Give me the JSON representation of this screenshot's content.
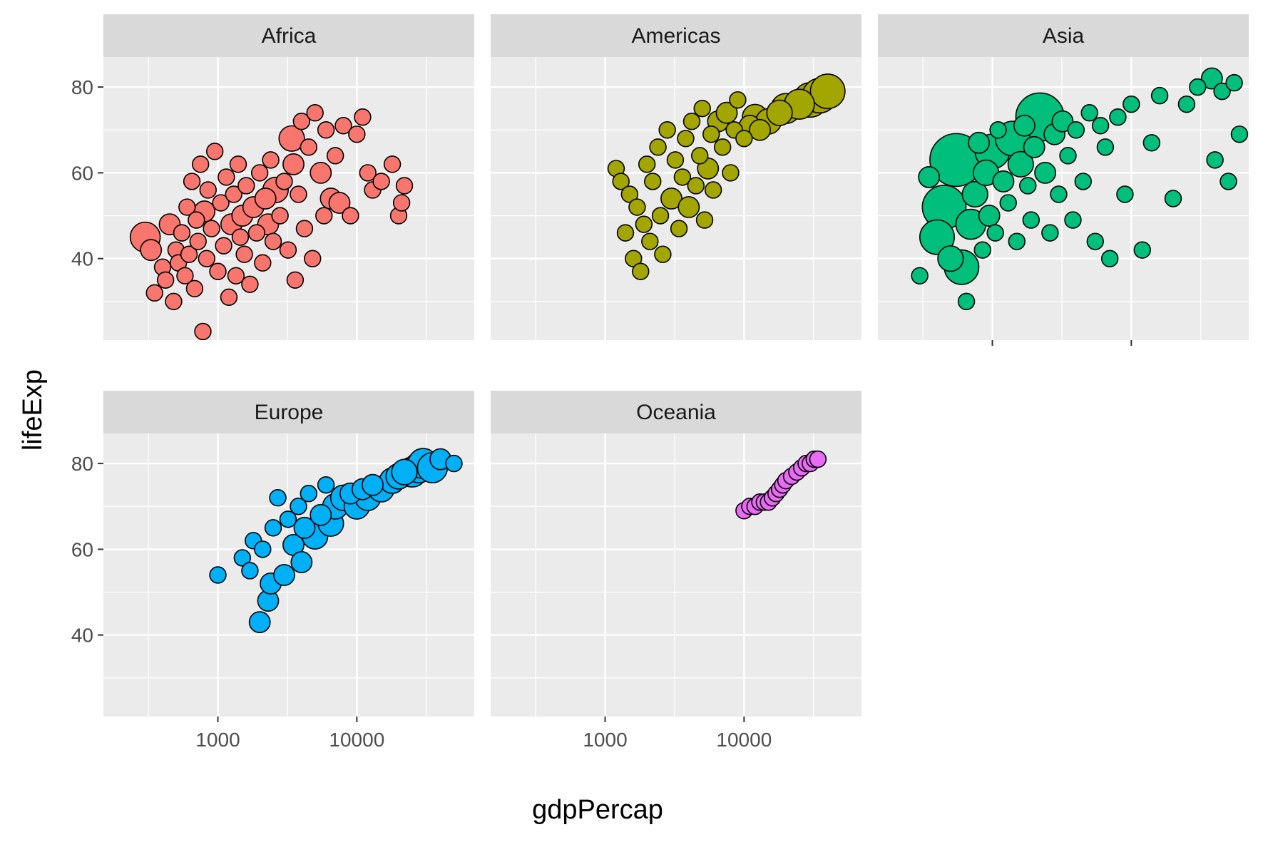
{
  "chart_data": {
    "type": "scatter",
    "xlabel": "gdpPercap",
    "ylabel": "lifeExp",
    "x_scale": "log10",
    "xlim": [
      150,
      70000
    ],
    "ylim": [
      21,
      87
    ],
    "x_ticks": [
      1000,
      10000
    ],
    "x_tick_labels": [
      "1000",
      "10000"
    ],
    "y_ticks": [
      40,
      60,
      80
    ],
    "y_tick_labels": [
      "40",
      "60",
      "80"
    ],
    "grid": true,
    "size_encoding": "population",
    "panels": [
      {
        "name": "Africa",
        "color": "#F8766D",
        "points": [
          [
            300,
            45,
            5
          ],
          [
            330,
            42,
            3
          ],
          [
            350,
            32,
            2
          ],
          [
            400,
            38,
            2
          ],
          [
            420,
            35,
            2
          ],
          [
            450,
            48,
            3
          ],
          [
            480,
            30,
            2
          ],
          [
            500,
            42,
            2
          ],
          [
            520,
            39,
            2
          ],
          [
            550,
            46,
            2
          ],
          [
            580,
            36,
            2
          ],
          [
            600,
            52,
            2
          ],
          [
            620,
            41,
            2
          ],
          [
            650,
            58,
            2
          ],
          [
            680,
            33,
            2
          ],
          [
            700,
            49,
            2
          ],
          [
            720,
            44,
            2
          ],
          [
            750,
            62,
            2
          ],
          [
            780,
            23,
            2
          ],
          [
            800,
            51,
            3
          ],
          [
            830,
            40,
            2
          ],
          [
            850,
            56,
            2
          ],
          [
            900,
            47,
            2
          ],
          [
            950,
            65,
            2
          ],
          [
            1000,
            37,
            2
          ],
          [
            1050,
            53,
            2
          ],
          [
            1100,
            43,
            2
          ],
          [
            1150,
            59,
            2
          ],
          [
            1200,
            31,
            2
          ],
          [
            1250,
            48,
            3
          ],
          [
            1300,
            55,
            2
          ],
          [
            1350,
            36,
            2
          ],
          [
            1400,
            62,
            2
          ],
          [
            1450,
            45,
            2
          ],
          [
            1500,
            50,
            3
          ],
          [
            1550,
            41,
            2
          ],
          [
            1600,
            57,
            2
          ],
          [
            1700,
            34,
            2
          ],
          [
            1800,
            52,
            3
          ],
          [
            1900,
            46,
            2
          ],
          [
            2000,
            60,
            2
          ],
          [
            2100,
            39,
            2
          ],
          [
            2200,
            54,
            3
          ],
          [
            2300,
            48,
            3
          ],
          [
            2400,
            63,
            2
          ],
          [
            2500,
            44,
            2
          ],
          [
            2600,
            56,
            4
          ],
          [
            2800,
            50,
            2
          ],
          [
            3000,
            58,
            2
          ],
          [
            3200,
            42,
            2
          ],
          [
            3400,
            68,
            4
          ],
          [
            3500,
            62,
            3
          ],
          [
            3600,
            35,
            2
          ],
          [
            3800,
            55,
            2
          ],
          [
            4000,
            72,
            2
          ],
          [
            4200,
            47,
            2
          ],
          [
            4500,
            66,
            2
          ],
          [
            4800,
            40,
            2
          ],
          [
            5000,
            74,
            2
          ],
          [
            5500,
            60,
            3
          ],
          [
            5800,
            50,
            2
          ],
          [
            6000,
            70,
            2
          ],
          [
            6500,
            54,
            3
          ],
          [
            7000,
            64,
            2
          ],
          [
            7500,
            53,
            3
          ],
          [
            8000,
            71,
            2
          ],
          [
            9000,
            50,
            2
          ],
          [
            10000,
            69,
            2
          ],
          [
            11000,
            73,
            2
          ],
          [
            12000,
            60,
            2
          ],
          [
            13000,
            56,
            2
          ],
          [
            15000,
            58,
            2
          ],
          [
            18000,
            62,
            2
          ],
          [
            20000,
            50,
            2
          ],
          [
            21000,
            53,
            2
          ],
          [
            22000,
            57,
            2
          ]
        ]
      },
      {
        "name": "Americas",
        "color": "#A3A500",
        "points": [
          [
            1200,
            61,
            2
          ],
          [
            1300,
            58,
            2
          ],
          [
            1400,
            46,
            2
          ],
          [
            1500,
            55,
            2
          ],
          [
            1600,
            40,
            2
          ],
          [
            1700,
            52,
            2
          ],
          [
            1800,
            37,
            2
          ],
          [
            1900,
            48,
            2
          ],
          [
            2000,
            62,
            2
          ],
          [
            2100,
            44,
            2
          ],
          [
            2200,
            58,
            2
          ],
          [
            2400,
            66,
            2
          ],
          [
            2500,
            50,
            2
          ],
          [
            2600,
            41,
            2
          ],
          [
            2800,
            70,
            2
          ],
          [
            3000,
            54,
            3
          ],
          [
            3200,
            63,
            2
          ],
          [
            3400,
            47,
            2
          ],
          [
            3600,
            59,
            2
          ],
          [
            3800,
            68,
            2
          ],
          [
            4000,
            52,
            3
          ],
          [
            4200,
            72,
            2
          ],
          [
            4500,
            57,
            2
          ],
          [
            4800,
            64,
            2
          ],
          [
            5000,
            75,
            2
          ],
          [
            5200,
            49,
            2
          ],
          [
            5500,
            61,
            3
          ],
          [
            5800,
            69,
            2
          ],
          [
            6000,
            56,
            2
          ],
          [
            6500,
            72,
            3
          ],
          [
            7000,
            66,
            2
          ],
          [
            7500,
            74,
            3
          ],
          [
            8000,
            60,
            2
          ],
          [
            8500,
            70,
            2
          ],
          [
            9000,
            77,
            2
          ],
          [
            10000,
            68,
            2
          ],
          [
            11000,
            71,
            3
          ],
          [
            12000,
            73,
            4
          ],
          [
            13000,
            70,
            3
          ],
          [
            15000,
            72,
            4
          ],
          [
            18000,
            74,
            4
          ],
          [
            20000,
            75,
            5
          ],
          [
            25000,
            76,
            5
          ],
          [
            30000,
            77,
            6
          ],
          [
            35000,
            78,
            6
          ],
          [
            40000,
            79,
            6
          ]
        ]
      },
      {
        "name": "Asia",
        "color": "#00BF7D",
        "points": [
          [
            300,
            36,
            2
          ],
          [
            350,
            59,
            3
          ],
          [
            400,
            45,
            6
          ],
          [
            450,
            52,
            8
          ],
          [
            500,
            40,
            4
          ],
          [
            550,
            63,
            10
          ],
          [
            600,
            38,
            6
          ],
          [
            650,
            30,
            2
          ],
          [
            700,
            48,
            5
          ],
          [
            750,
            55,
            4
          ],
          [
            800,
            67,
            3
          ],
          [
            850,
            42,
            2
          ],
          [
            900,
            60,
            4
          ],
          [
            950,
            50,
            3
          ],
          [
            1000,
            65,
            6
          ],
          [
            1050,
            46,
            2
          ],
          [
            1100,
            70,
            2
          ],
          [
            1200,
            58,
            3
          ],
          [
            1300,
            53,
            2
          ],
          [
            1400,
            68,
            6
          ],
          [
            1500,
            44,
            2
          ],
          [
            1600,
            62,
            4
          ],
          [
            1700,
            71,
            3
          ],
          [
            1800,
            57,
            2
          ],
          [
            1900,
            49,
            2
          ],
          [
            2000,
            66,
            3
          ],
          [
            2200,
            73,
            9
          ],
          [
            2400,
            60,
            3
          ],
          [
            2600,
            46,
            2
          ],
          [
            2800,
            69,
            3
          ],
          [
            3000,
            55,
            2
          ],
          [
            3200,
            72,
            3
          ],
          [
            3500,
            64,
            2
          ],
          [
            3800,
            49,
            2
          ],
          [
            4000,
            70,
            2
          ],
          [
            4500,
            58,
            2
          ],
          [
            5000,
            74,
            2
          ],
          [
            5500,
            44,
            2
          ],
          [
            6000,
            71,
            2
          ],
          [
            6500,
            66,
            2
          ],
          [
            7000,
            40,
            2
          ],
          [
            8000,
            73,
            2
          ],
          [
            9000,
            55,
            2
          ],
          [
            10000,
            76,
            2
          ],
          [
            12000,
            42,
            2
          ],
          [
            14000,
            67,
            2
          ],
          [
            16000,
            78,
            2
          ],
          [
            20000,
            54,
            2
          ],
          [
            25000,
            76,
            2
          ],
          [
            30000,
            80,
            2
          ],
          [
            38000,
            82,
            3
          ],
          [
            40000,
            63,
            2
          ],
          [
            45000,
            79,
            2
          ],
          [
            50000,
            58,
            2
          ],
          [
            55000,
            81,
            2
          ],
          [
            60000,
            69,
            2
          ]
        ]
      },
      {
        "name": "Europe",
        "color": "#00B0F6",
        "points": [
          [
            1000,
            54,
            2
          ],
          [
            1500,
            58,
            2
          ],
          [
            1700,
            55,
            2
          ],
          [
            1800,
            62,
            2
          ],
          [
            2000,
            43,
            3
          ],
          [
            2100,
            60,
            2
          ],
          [
            2300,
            48,
            3
          ],
          [
            2400,
            52,
            3
          ],
          [
            2500,
            65,
            2
          ],
          [
            2700,
            72,
            2
          ],
          [
            3000,
            54,
            3
          ],
          [
            3200,
            67,
            2
          ],
          [
            3500,
            61,
            3
          ],
          [
            3800,
            70,
            2
          ],
          [
            4000,
            57,
            3
          ],
          [
            4200,
            65,
            3
          ],
          [
            4500,
            73,
            2
          ],
          [
            5000,
            63,
            4
          ],
          [
            5500,
            68,
            3
          ],
          [
            6000,
            75,
            2
          ],
          [
            6500,
            66,
            4
          ],
          [
            7000,
            70,
            4
          ],
          [
            8000,
            72,
            4
          ],
          [
            9000,
            73,
            3
          ],
          [
            10000,
            70,
            4
          ],
          [
            11000,
            74,
            3
          ],
          [
            12000,
            72,
            4
          ],
          [
            13000,
            75,
            3
          ],
          [
            15000,
            74,
            4
          ],
          [
            18000,
            76,
            4
          ],
          [
            20000,
            77,
            4
          ],
          [
            22000,
            78,
            4
          ],
          [
            25000,
            78,
            5
          ],
          [
            28000,
            79,
            5
          ],
          [
            30000,
            80,
            5
          ],
          [
            35000,
            79,
            5
          ],
          [
            40000,
            81,
            3
          ],
          [
            50000,
            80,
            2
          ]
        ]
      },
      {
        "name": "Oceania",
        "color": "#E76BF3",
        "points": [
          [
            10000,
            69,
            2
          ],
          [
            11000,
            70,
            2
          ],
          [
            12000,
            70,
            2
          ],
          [
            13000,
            71,
            2
          ],
          [
            14000,
            71,
            2
          ],
          [
            15000,
            71,
            2
          ],
          [
            16000,
            72,
            2
          ],
          [
            17000,
            73,
            2
          ],
          [
            18000,
            74,
            2
          ],
          [
            19000,
            75,
            2
          ],
          [
            20000,
            76,
            2
          ],
          [
            22000,
            77,
            2
          ],
          [
            24000,
            78,
            2
          ],
          [
            26000,
            79,
            2
          ],
          [
            28000,
            80,
            2
          ],
          [
            30000,
            80,
            2
          ],
          [
            32000,
            81,
            2
          ],
          [
            34000,
            81,
            2
          ]
        ]
      }
    ]
  }
}
